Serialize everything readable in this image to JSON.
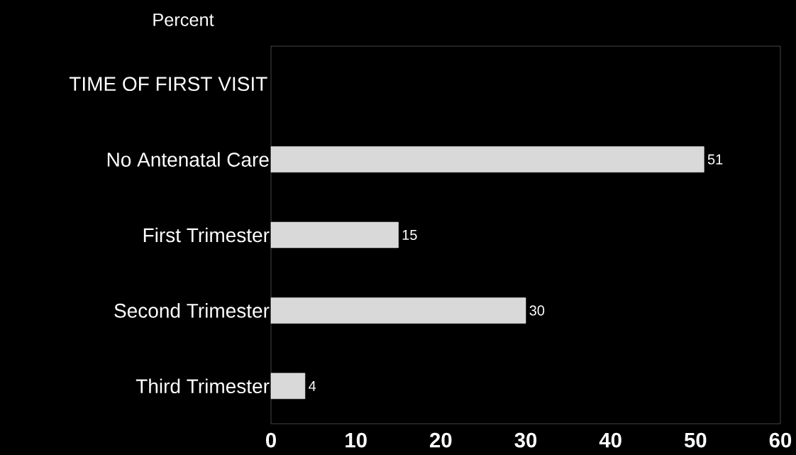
{
  "chart_data": {
    "type": "bar",
    "orientation": "horizontal",
    "title": "Percent",
    "ylabel": "TIME OF FIRST VISIT",
    "categories": [
      "No Antenatal Care",
      "First Trimester",
      "Second Trimester",
      "Third Trimester"
    ],
    "values": [
      51,
      15,
      30,
      4
    ],
    "color": "#d9d9d9",
    "xlim": [
      0,
      60
    ],
    "xticks": [
      0,
      10,
      20,
      30,
      40,
      50,
      60
    ],
    "data_labels": true
  }
}
